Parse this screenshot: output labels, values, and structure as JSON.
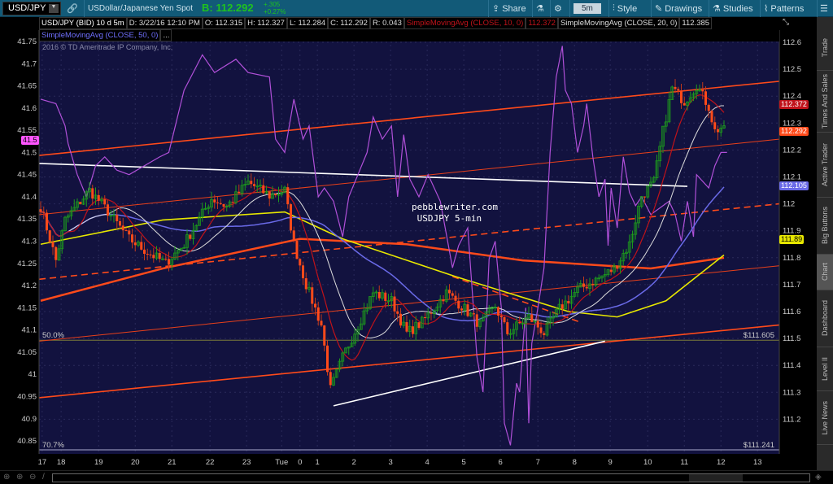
{
  "toolbar": {
    "symbol": "USD/JPY",
    "description": "USDollar/Japanese Yen Spot",
    "bid": "B: 112.292",
    "change": "+.305",
    "change_pct": "+0.27%",
    "share": "Share",
    "timeframe": "5m",
    "style": "Style",
    "drawings": "Drawings",
    "studies": "Studies",
    "patterns": "Patterns"
  },
  "info": {
    "title": "USD/JPY (BID) 10 d 5m",
    "date": "D: 3/22/16 12:10 PM",
    "open": "O: 112.315",
    "high": "H: 112.327",
    "low": "L: 112.284",
    "close": "C: 112.292",
    "range": "R: 0.043",
    "sma10": "SimpleMovingAvg (CLOSE, 10, 0)",
    "sma10_val": "112.372",
    "sma20": "SimpleMovingAvg (CLOSE, 20, 0)",
    "sma20_val": "112.385",
    "sma50": "SimpleMovingAvg (CLOSE, 50, 0)",
    "more": "..."
  },
  "copyright": "2016 © TD Ameritrade IP Company, Inc.",
  "watermark": {
    "line1": "pebblewriter.com",
    "line2": " USDJPY 5-min"
  },
  "side_tabs": [
    "Trade",
    "Times And Sales",
    "Active Trader",
    "Big Buttons",
    "Chart",
    "Dashboard",
    "Level II",
    "Live News"
  ],
  "active_tab": "Chart",
  "price_tags": [
    {
      "label": "112.372",
      "color": "#c0121a"
    },
    {
      "label": "112.292",
      "color": "#ff4a1a"
    },
    {
      "label": "112.105",
      "color": "#6a6ae8"
    },
    {
      "label": "111.89",
      "color": "#e8e800"
    }
  ],
  "left_tag": {
    "label": "41.5",
    "color": "#ff55ff"
  },
  "fib": [
    {
      "pct": "50.0%",
      "price": "$111.605",
      "value": 41.077
    },
    {
      "pct": "70.7%",
      "price": "$111.241",
      "value": 40.83
    }
  ],
  "chart_data": {
    "type": "candlestick",
    "right_axis": {
      "ticks": [
        112.6,
        112.5,
        112.4,
        112.3,
        112.2,
        112.1,
        112,
        111.9,
        111.8,
        111.7,
        111.6,
        111.5,
        111.4,
        111.3,
        111.2
      ],
      "labels": [
        "112.6",
        "112.5",
        "112.4",
        "112.3",
        "112.2",
        "112.1",
        "112",
        "111.9",
        "111.8",
        "111.7",
        "111.6",
        "111.5",
        "111.4",
        "111.3",
        "111.2"
      ]
    },
    "left_axis": {
      "ticks": [
        41.75,
        41.7,
        41.65,
        41.6,
        41.55,
        41.5,
        41.45,
        41.4,
        41.35,
        41.3,
        41.25,
        41.2,
        41.15,
        41.1,
        41.05,
        41,
        40.95,
        40.9,
        40.85
      ],
      "labels": [
        "41.75",
        "41.7",
        "41.65",
        "41.6",
        "41.55",
        "41.5",
        "41.45",
        "41.4",
        "41.35",
        "41.3",
        "41.25",
        "41.2",
        "41.15",
        "41.1",
        "41.05",
        "41",
        "40.95",
        "40.9",
        "40.85"
      ]
    },
    "x_ticks": [
      {
        "bar": 0.5,
        "label": "17"
      },
      {
        "bar": 6.7,
        "label": "18"
      },
      {
        "bar": 19,
        "label": "19"
      },
      {
        "bar": 31,
        "label": "20"
      },
      {
        "bar": 43,
        "label": "21"
      },
      {
        "bar": 55.5,
        "label": "22"
      },
      {
        "bar": 67.5,
        "label": "23"
      },
      {
        "bar": 79,
        "label": "Tue"
      },
      {
        "bar": 85,
        "label": "0"
      },
      {
        "bar": 90.7,
        "label": "1"
      },
      {
        "bar": 102.7,
        "label": "2"
      },
      {
        "bar": 114.7,
        "label": "3"
      },
      {
        "bar": 126.7,
        "label": "4"
      },
      {
        "bar": 138.7,
        "label": "5"
      },
      {
        "bar": 150.7,
        "label": "6"
      },
      {
        "bar": 163,
        "label": "7"
      },
      {
        "bar": 175,
        "label": "8"
      },
      {
        "bar": 186.7,
        "label": "9"
      },
      {
        "bar": 199,
        "label": "10"
      },
      {
        "bar": 211,
        "label": "11"
      },
      {
        "bar": 223,
        "label": "12"
      },
      {
        "bar": 235,
        "label": "13"
      }
    ],
    "close_path": [
      [
        0,
        111.99
      ],
      [
        5,
        111.79
      ],
      [
        8,
        111.94
      ],
      [
        16,
        112.05
      ],
      [
        20,
        112.0
      ],
      [
        29,
        111.87
      ],
      [
        35,
        111.82
      ],
      [
        41,
        111.78
      ],
      [
        47,
        111.85
      ],
      [
        56,
        112.02
      ],
      [
        61,
        111.99
      ],
      [
        68,
        112.08
      ],
      [
        75,
        112.03
      ],
      [
        80,
        112.05
      ],
      [
        83,
        111.85
      ],
      [
        87,
        111.7
      ],
      [
        92,
        111.55
      ],
      [
        95,
        111.31
      ],
      [
        99,
        111.43
      ],
      [
        104,
        111.55
      ],
      [
        109,
        111.67
      ],
      [
        115,
        111.64
      ],
      [
        120,
        111.52
      ],
      [
        125,
        111.56
      ],
      [
        133,
        111.67
      ],
      [
        139,
        111.61
      ],
      [
        144,
        111.55
      ],
      [
        149,
        111.62
      ],
      [
        153,
        111.52
      ],
      [
        160,
        111.58
      ],
      [
        165,
        111.52
      ],
      [
        170,
        111.61
      ],
      [
        176,
        111.68
      ],
      [
        184,
        111.73
      ],
      [
        188,
        111.76
      ],
      [
        193,
        111.85
      ],
      [
        197,
        112.03
      ],
      [
        201,
        112.08
      ],
      [
        204,
        112.27
      ],
      [
        207,
        112.43
      ],
      [
        211,
        112.38
      ],
      [
        215,
        112.44
      ],
      [
        219,
        112.36
      ],
      [
        221,
        112.27
      ],
      [
        224,
        112.29
      ]
    ],
    "thick_ma": [
      [
        0,
        111.64
      ],
      [
        40,
        111.76
      ],
      [
        85,
        111.87
      ],
      [
        120,
        111.85
      ],
      [
        158,
        111.79
      ],
      [
        200,
        111.76
      ],
      [
        224,
        111.8
      ]
    ],
    "yellow_ma": [
      [
        0,
        111.85
      ],
      [
        40,
        111.94
      ],
      [
        80,
        111.97
      ],
      [
        99,
        111.87
      ],
      [
        136,
        111.73
      ],
      [
        173,
        111.6
      ],
      [
        189,
        111.58
      ],
      [
        205,
        111.64
      ],
      [
        224,
        111.81
      ]
    ],
    "oscillator": [
      [
        0,
        41.62
      ],
      [
        5,
        41.61
      ],
      [
        8,
        41.56
      ],
      [
        9,
        41.52
      ],
      [
        12,
        41.45
      ],
      [
        15,
        41.4
      ],
      [
        18,
        41.47
      ],
      [
        21,
        41.49
      ],
      [
        25,
        41.46
      ],
      [
        29,
        41.45
      ],
      [
        39,
        41.49
      ],
      [
        42,
        41.5
      ],
      [
        47,
        41.64
      ],
      [
        53,
        41.72
      ],
      [
        57,
        41.68
      ],
      [
        64,
        41.71
      ],
      [
        68,
        41.68
      ],
      [
        75,
        41.67
      ],
      [
        77,
        41.53
      ],
      [
        80,
        41.5
      ],
      [
        83,
        41.62
      ],
      [
        86,
        41.53
      ],
      [
        88,
        41.56
      ],
      [
        91,
        41.4
      ],
      [
        93,
        41.42
      ],
      [
        96,
        41.39
      ],
      [
        99,
        41.31
      ],
      [
        101,
        41.4
      ],
      [
        104,
        41.45
      ],
      [
        107,
        41.5
      ],
      [
        109,
        41.58
      ],
      [
        112,
        41.53
      ],
      [
        115,
        41.56
      ],
      [
        117,
        41.4
      ],
      [
        119,
        41.54
      ],
      [
        121,
        41.44
      ],
      [
        124,
        41.4
      ],
      [
        127,
        41.45
      ],
      [
        131,
        41.39
      ],
      [
        135,
        41.24
      ],
      [
        137,
        41.29
      ],
      [
        140,
        41.33
      ],
      [
        143,
        41.04
      ],
      [
        145,
        40.96
      ],
      [
        147,
        41.26
      ],
      [
        149,
        41.3
      ],
      [
        151,
        41.15
      ],
      [
        152,
        40.89
      ],
      [
        154,
        40.84
      ],
      [
        156,
        40.98
      ],
      [
        157,
        40.96
      ],
      [
        159,
        41.15
      ],
      [
        160,
        40.89
      ],
      [
        161,
        41.07
      ],
      [
        163,
        41.15
      ],
      [
        165,
        41.24
      ],
      [
        167,
        41.5
      ],
      [
        169,
        41.67
      ],
      [
        171,
        41.74
      ],
      [
        172,
        41.64
      ],
      [
        174,
        41.61
      ],
      [
        176,
        41.5
      ],
      [
        178,
        41.56
      ],
      [
        179,
        41.61
      ],
      [
        181,
        41.49
      ],
      [
        183,
        41.4
      ],
      [
        185,
        41.44
      ],
      [
        186,
        41.29
      ],
      [
        187,
        41.42
      ],
      [
        189,
        41.33
      ],
      [
        191,
        41.49
      ],
      [
        193,
        41.41
      ],
      [
        195,
        41.38
      ],
      [
        197,
        41.4
      ],
      [
        200,
        41.36
      ],
      [
        204,
        41.38
      ],
      [
        206,
        41.39
      ],
      [
        208,
        41.36
      ],
      [
        210,
        41.3
      ],
      [
        212,
        41.39
      ],
      [
        214,
        41.31
      ],
      [
        215,
        41.45
      ],
      [
        219,
        41.42
      ],
      [
        221,
        41.47
      ],
      [
        223,
        41.5
      ],
      [
        225,
        41.5
      ]
    ],
    "trendlines": [
      {
        "from": [
          -0.5,
          112.18
        ],
        "to": [
          242,
          112.455
        ],
        "color": "#ff4a1a",
        "style": "thick"
      },
      {
        "from": [
          -0.5,
          111.96
        ],
        "to": [
          242,
          112.24
        ],
        "color": "#e8401a",
        "style": "thin"
      },
      {
        "from": [
          -0.5,
          111.72
        ],
        "to": [
          242,
          112.0
        ],
        "color": "#ff4a1a",
        "style": "dashed"
      },
      {
        "from": [
          -0.5,
          111.49
        ],
        "to": [
          242,
          111.77
        ],
        "color": "#e8401a",
        "style": "thin"
      },
      {
        "from": [
          -0.5,
          111.28
        ],
        "to": [
          242,
          111.55
        ],
        "color": "#ff4a1a",
        "style": "thick"
      },
      {
        "from": [
          -0.5,
          112.15
        ],
        "to": [
          212,
          112.065
        ],
        "color": "#ffffff",
        "style": "thick"
      },
      {
        "from": [
          96,
          111.25
        ],
        "to": [
          185,
          111.49
        ],
        "color": "#ffffff",
        "style": "thick"
      },
      {
        "from": [
          135,
          111.73
        ],
        "to": [
          177,
          111.56
        ],
        "color": "#ff4a1a",
        "style": "dashed"
      }
    ],
    "colors": {
      "up": "#1c9a1c",
      "down": "#ff4a1a",
      "sma10": "#c0121a",
      "sma20": "#dddddd",
      "sma50": "#6a6ae8",
      "thick_ma": "#ff4a1a",
      "yellow_ma": "#e8e800",
      "oscillator": "#b050d8",
      "background": "#12123f"
    }
  }
}
